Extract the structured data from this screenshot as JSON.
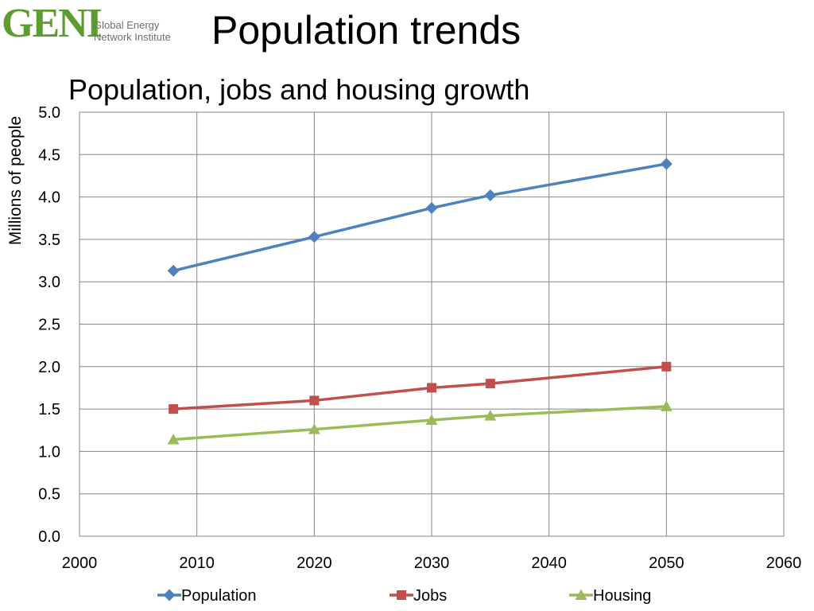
{
  "logo": {
    "mark": "GENI",
    "line1": "Global Energy",
    "line2": "Network Institute",
    "colors": {
      "mark": "#5d9c2e",
      "text": "#6f6f6f"
    }
  },
  "slide_title": "Population trends",
  "chart_data": {
    "type": "line",
    "title": "Population, jobs and housing growth",
    "xlabel": "",
    "ylabel": "Millions of people",
    "xlim": [
      2000,
      2060
    ],
    "ylim": [
      0,
      5
    ],
    "x_ticks": [
      "2000",
      "2010",
      "2020",
      "2030",
      "2040",
      "2050",
      "2060"
    ],
    "y_ticks": [
      "0.0",
      "0.5",
      "1.0",
      "1.5",
      "2.0",
      "2.5",
      "3.0",
      "3.5",
      "4.0",
      "4.5",
      "5.0"
    ],
    "grid": true,
    "legend_position": "bottom",
    "series": [
      {
        "name": "Population",
        "color": "#4f81bd",
        "marker": "diamond",
        "points": [
          [
            2008,
            3.13
          ],
          [
            2020,
            3.53
          ],
          [
            2030,
            3.87
          ],
          [
            2035,
            4.02
          ],
          [
            2050,
            4.39
          ]
        ]
      },
      {
        "name": "Jobs",
        "color": "#c0504d",
        "marker": "square",
        "points": [
          [
            2008,
            1.5
          ],
          [
            2020,
            1.6
          ],
          [
            2030,
            1.75
          ],
          [
            2035,
            1.8
          ],
          [
            2050,
            2.0
          ]
        ]
      },
      {
        "name": "Housing",
        "color": "#9bbb59",
        "marker": "triangle",
        "points": [
          [
            2008,
            1.14
          ],
          [
            2020,
            1.26
          ],
          [
            2030,
            1.37
          ],
          [
            2035,
            1.42
          ],
          [
            2050,
            1.53
          ]
        ]
      }
    ]
  }
}
